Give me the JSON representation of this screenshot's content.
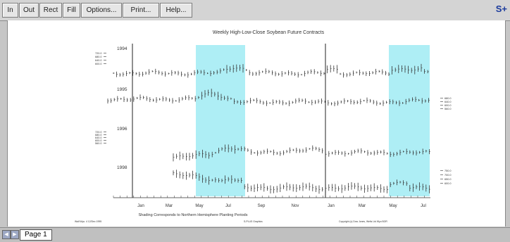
{
  "toolbar": {
    "buttons": [
      "In",
      "Out",
      "Rect",
      "Fill",
      "Options...",
      "Print...",
      "Help..."
    ],
    "logo": "S+"
  },
  "chart_data": {
    "type": "line",
    "title": "Weekly High-Low-Close Soybean Future Contracts",
    "panels": [
      {
        "label": "1994",
        "axis_side": "left",
        "tick_labels": [
          "720.0",
          "680.0",
          "640.0",
          "600.0"
        ]
      },
      {
        "label": "1995",
        "axis_side": "right",
        "tick_labels": [
          "680.0",
          "640.0",
          "600.0",
          "560.0"
        ]
      },
      {
        "label": "1996",
        "axis_side": "left",
        "tick_labels": [
          "720.0",
          "680.0",
          "640.0",
          "600.0",
          "560.0"
        ]
      },
      {
        "label": "1998",
        "axis_side": "right",
        "tick_labels": [
          "750.0",
          "700.0",
          "650.0",
          "600.0"
        ]
      }
    ],
    "x_tick_labels": [
      "Jan",
      "Mar",
      "May",
      "Jul",
      "Sep",
      "Nov",
      "Jan",
      "Mar",
      "May",
      "Jul"
    ],
    "shaded_periods": [
      "May-Jul",
      "May-Jul"
    ],
    "footnote": "Shading Corresponds to Northern Hemisphere Planting Periods",
    "credits": [
      "Wall Wyo. 4 12/Dec 1995",
      "S-PLUS Graphics",
      "Copyright (c) Dow Jones, Wells Ltd Wyo BOR"
    ]
  },
  "colors": {
    "shade": "#aeeef5",
    "ink": "#333333",
    "logo": "#1a3a9c"
  },
  "statusbar": {
    "page_label": "Page 1"
  }
}
